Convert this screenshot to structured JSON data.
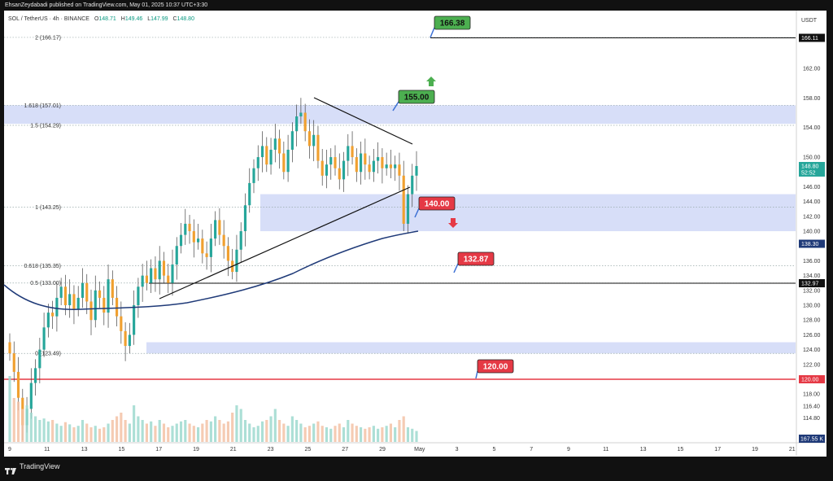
{
  "header": {
    "published": "EhsanZeydabadi published on TradingView.com, May 01, 2025 10:37 UTC+3:30"
  },
  "footer": {
    "brand": "TradingView"
  },
  "legend": {
    "symbol": "SOL / TetherUS · 4h · BINANCE",
    "open_label": "O",
    "open": "148.71",
    "high_label": "H",
    "high": "149.46",
    "low_label": "L",
    "low": "147.99",
    "close_label": "C",
    "close": "148.80"
  },
  "currency": "USDT",
  "colors": {
    "up": "#26a69a",
    "down": "#f0a030",
    "zone": "#c9d3f5",
    "ma": "#1f3a78",
    "callout_green": "#4caf50",
    "callout_red": "#e53945",
    "red_line": "#e53945"
  },
  "chart_data": {
    "type": "candlestick",
    "title": "SOL / TetherUS · 4h · BINANCE",
    "ylim": [
      113,
      170
    ],
    "y_ticks": [
      114.8,
      116.4,
      118,
      120,
      122,
      124,
      126,
      128,
      130,
      132,
      134,
      136,
      138,
      140,
      142,
      144,
      146,
      150,
      154,
      158,
      162
    ],
    "y_tick_labels": [
      "114.80",
      "116.40",
      "118.00",
      "120.00",
      "122.00",
      "124.00",
      "126.00",
      "128.00",
      "130.00",
      "132.00",
      "134.00",
      "136.00",
      "138.00",
      "140.00",
      "142.00",
      "144.00",
      "146.00",
      "150.00",
      "154.00",
      "158.00",
      "162.00"
    ],
    "x_tick_labels": [
      "9",
      "11",
      "13",
      "15",
      "17",
      "19",
      "21",
      "23",
      "25",
      "27",
      "29",
      "May",
      "3",
      "5",
      "7",
      "9",
      "11",
      "13",
      "15",
      "17",
      "19",
      "21"
    ],
    "price_badges": [
      {
        "value": 166.11,
        "label": "166.11"
      },
      {
        "value": 148.8,
        "label": "148.80",
        "sub": "52:52"
      },
      {
        "value": 138.3,
        "label": "138.30"
      },
      {
        "value": 132.97,
        "label": "132.97"
      },
      {
        "value": 120.0,
        "label": "120.00"
      }
    ],
    "volume_badge": "167.55 K",
    "fib_levels": [
      {
        "label": "2 (166.17)",
        "value": 166.17
      },
      {
        "label": "1.618 (157.01)",
        "value": 157.01
      },
      {
        "label": "1.5 (154.29)",
        "value": 154.29
      },
      {
        "label": "1 (143.25)",
        "value": 143.25
      },
      {
        "label": "0.618 (135.35)",
        "value": 135.35
      },
      {
        "label": "0.5 (133.00)",
        "value": 133.0
      },
      {
        "label": "0 (123.49)",
        "value": 123.49
      }
    ],
    "zones": [
      {
        "from": 154.5,
        "to": 157.0
      },
      {
        "from": 140.0,
        "to": 145.0
      },
      {
        "from": 123.49,
        "to": 125.0
      }
    ],
    "targets": [
      {
        "label": "166.38",
        "value": 166.38,
        "kind": "up"
      },
      {
        "label": "155.00",
        "value": 155.0,
        "kind": "up"
      },
      {
        "label": "140.00",
        "value": 140.0,
        "kind": "down"
      },
      {
        "label": "132.87",
        "value": 132.87,
        "kind": "down"
      },
      {
        "label": "120.00",
        "value": 120.0,
        "kind": "down"
      }
    ],
    "horizontal_lines": [
      {
        "value": 166.11,
        "color": "#111111"
      },
      {
        "value": 132.97,
        "color": "#111111"
      },
      {
        "value": 120.0,
        "color": "#e53945"
      }
    ],
    "closes": [
      123.5,
      121.0,
      117.5,
      113.8,
      116.0,
      119.5,
      121.5,
      124.0,
      127.0,
      129.0,
      128.5,
      131.0,
      132.5,
      130.0,
      131.5,
      129.5,
      131.0,
      133.0,
      130.5,
      128.0,
      132.0,
      131.0,
      129.0,
      133.5,
      131.0,
      128.5,
      126.5,
      124.5,
      126.0,
      130.0,
      132.5,
      134.0,
      133.0,
      135.0,
      133.5,
      136.0,
      134.0,
      133.0,
      135.5,
      138.0,
      139.5,
      141.0,
      140.0,
      138.5,
      139.0,
      137.0,
      136.5,
      139.0,
      141.5,
      139.5,
      138.0,
      136.0,
      134.5,
      137.5,
      140.0,
      143.5,
      146.5,
      148.5,
      150.0,
      151.5,
      149.0,
      151.0,
      152.5,
      150.5,
      148.0,
      151.0,
      153.5,
      155.5,
      156.0,
      153.5,
      151.5,
      153.0,
      149.5,
      147.5,
      149.0,
      150.0,
      148.5,
      147.0,
      149.5,
      151.5,
      150.0,
      148.0,
      150.5,
      149.0,
      148.0,
      149.5,
      150.0,
      148.5,
      149.0,
      148.5,
      149.0,
      147.5,
      141.0,
      145.0,
      147.5,
      148.8
    ],
    "volumes": [
      0.9,
      0.6,
      0.55,
      0.45,
      0.5,
      0.4,
      0.35,
      0.3,
      0.32,
      0.28,
      0.3,
      0.25,
      0.22,
      0.27,
      0.24,
      0.2,
      0.22,
      0.3,
      0.25,
      0.2,
      0.22,
      0.18,
      0.2,
      0.25,
      0.3,
      0.35,
      0.4,
      0.3,
      0.25,
      0.5,
      0.35,
      0.3,
      0.25,
      0.28,
      0.22,
      0.3,
      0.25,
      0.2,
      0.22,
      0.25,
      0.28,
      0.3,
      0.25,
      0.22,
      0.2,
      0.25,
      0.3,
      0.28,
      0.35,
      0.3,
      0.25,
      0.28,
      0.4,
      0.5,
      0.45,
      0.3,
      0.25,
      0.2,
      0.22,
      0.28,
      0.3,
      0.35,
      0.45,
      0.3,
      0.25,
      0.22,
      0.35,
      0.3,
      0.25,
      0.2,
      0.22,
      0.25,
      0.28,
      0.22,
      0.2,
      0.18,
      0.22,
      0.25,
      0.2,
      0.3,
      0.25,
      0.22,
      0.2,
      0.18,
      0.2,
      0.22,
      0.18,
      0.2,
      0.22,
      0.25,
      0.2,
      0.3,
      0.35,
      0.2,
      0.18,
      0.15
    ]
  }
}
